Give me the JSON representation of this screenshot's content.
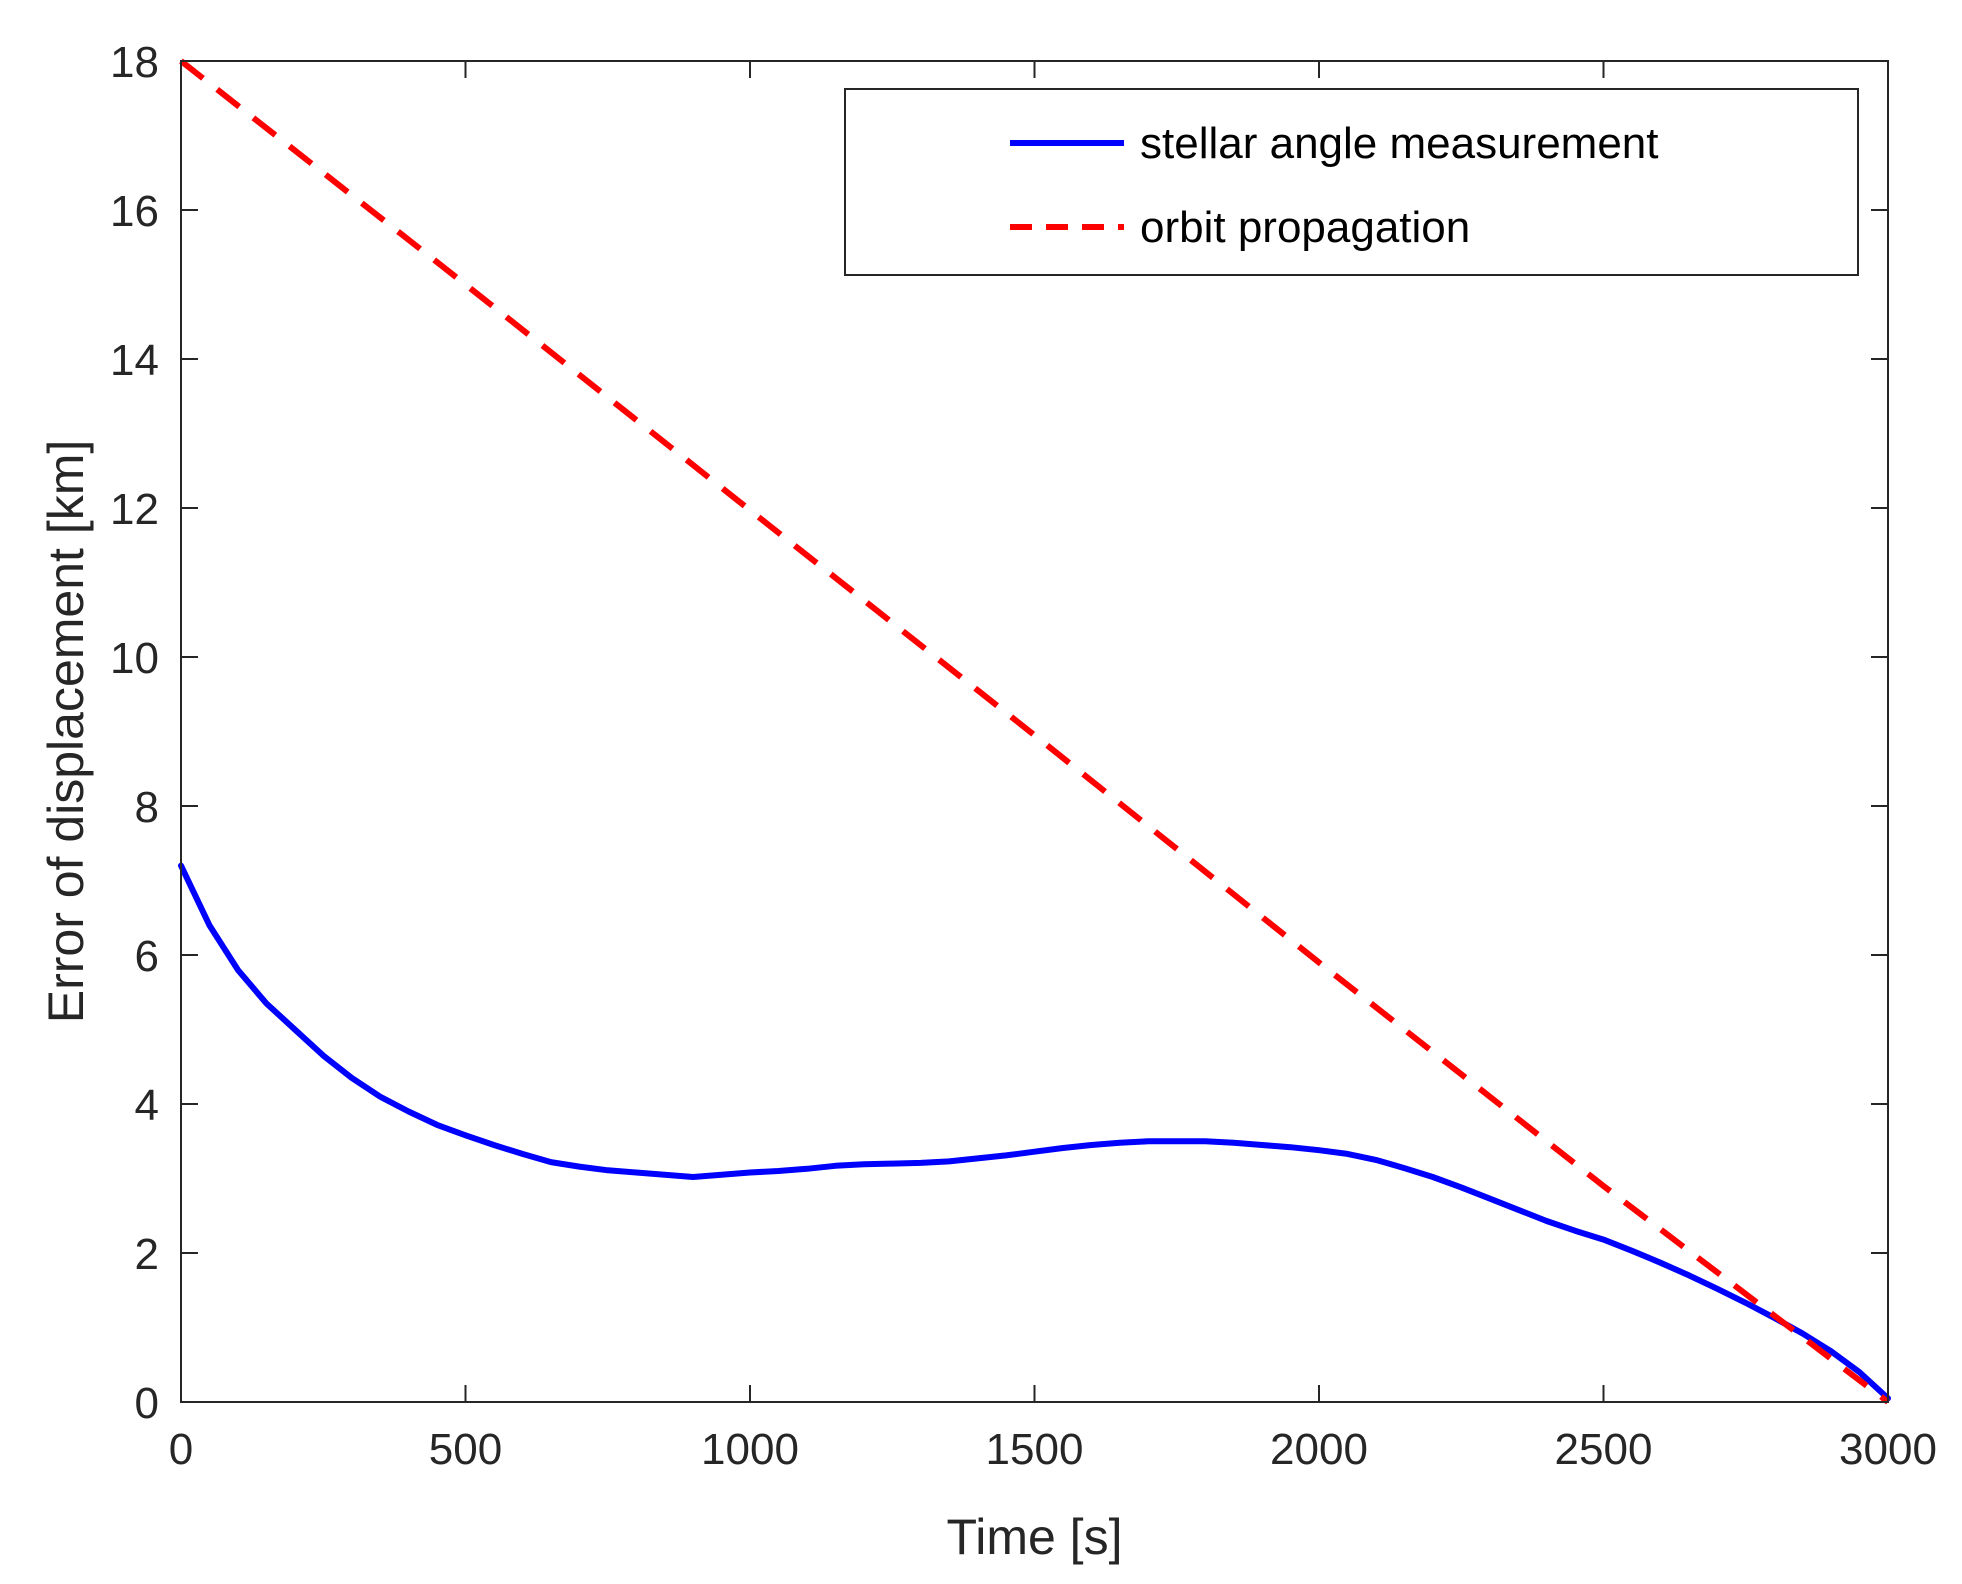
{
  "chart_data": {
    "type": "line",
    "title": "",
    "xlabel": "Time [s]",
    "ylabel": "Error of displacement [km]",
    "xlim": [
      0,
      3000
    ],
    "ylim": [
      0,
      18
    ],
    "xticks": [
      0,
      500,
      1000,
      1500,
      2000,
      2500,
      3000
    ],
    "yticks": [
      0,
      2,
      4,
      6,
      8,
      10,
      12,
      14,
      16,
      18
    ],
    "xtick_labels": [
      "0",
      "500",
      "1000",
      "1500",
      "2000",
      "2500",
      "3000"
    ],
    "ytick_labels": [
      "0",
      "2",
      "4",
      "6",
      "8",
      "10",
      "12",
      "14",
      "16",
      "18"
    ],
    "grid": false,
    "legend_position": "top-right",
    "series": [
      {
        "name": "stellar angle measurement",
        "color": "#0000ff",
        "style": "solid",
        "x": [
          0,
          50,
          100,
          150,
          200,
          250,
          300,
          350,
          400,
          450,
          500,
          550,
          600,
          650,
          700,
          750,
          800,
          850,
          900,
          950,
          1000,
          1050,
          1100,
          1150,
          1200,
          1250,
          1300,
          1350,
          1400,
          1450,
          1500,
          1550,
          1600,
          1650,
          1700,
          1750,
          1800,
          1850,
          1900,
          1950,
          2000,
          2050,
          2100,
          2150,
          2200,
          2250,
          2300,
          2350,
          2400,
          2450,
          2500,
          2550,
          2600,
          2650,
          2700,
          2750,
          2800,
          2850,
          2900,
          2950,
          3000
        ],
        "y": [
          7.2,
          6.4,
          5.8,
          5.35,
          5.0,
          4.65,
          4.35,
          4.1,
          3.9,
          3.72,
          3.58,
          3.45,
          3.33,
          3.22,
          3.16,
          3.11,
          3.08,
          3.05,
          3.02,
          3.05,
          3.08,
          3.1,
          3.13,
          3.17,
          3.19,
          3.2,
          3.21,
          3.23,
          3.27,
          3.31,
          3.36,
          3.41,
          3.45,
          3.48,
          3.5,
          3.5,
          3.5,
          3.48,
          3.45,
          3.42,
          3.38,
          3.33,
          3.25,
          3.14,
          3.02,
          2.88,
          2.73,
          2.58,
          2.43,
          2.3,
          2.18,
          2.03,
          1.87,
          1.7,
          1.52,
          1.33,
          1.13,
          0.92,
          0.68,
          0.4,
          0.05
        ]
      },
      {
        "name": "orbit propagation",
        "color": "#ff0000",
        "style": "dashed",
        "x": [
          0,
          500,
          1000,
          1500,
          2000,
          2500,
          3000
        ],
        "y": [
          18.0,
          15.0,
          11.97,
          8.95,
          5.9,
          2.9,
          0.0
        ]
      }
    ]
  }
}
